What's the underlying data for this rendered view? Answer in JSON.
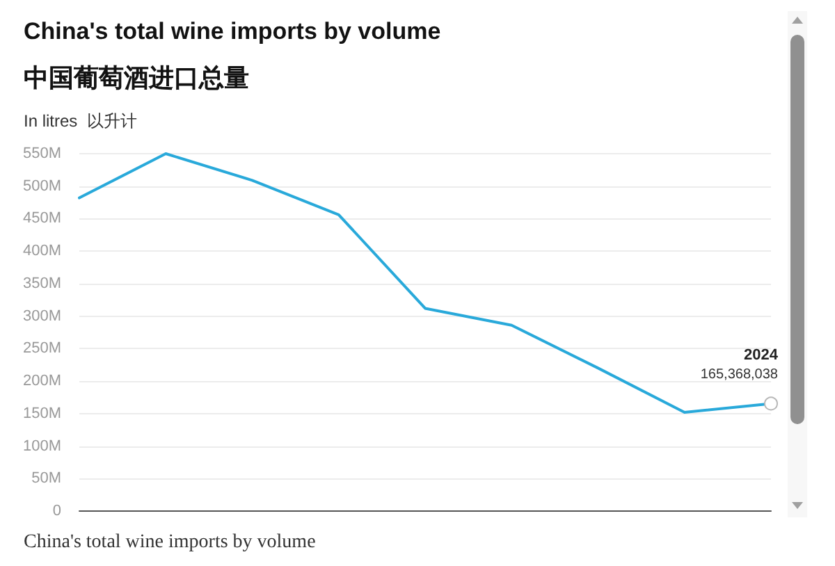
{
  "chart_data": {
    "type": "line",
    "title": "China's total wine imports by volume",
    "subtitle": "中国葡萄酒进口总量",
    "ylabel": "In litres  以升计",
    "categories": [
      null,
      null,
      null,
      null,
      null,
      null,
      null,
      null,
      null
    ],
    "series": [
      {
        "color": "#29a9da",
        "values": [
          482000000,
          550000000,
          509000000,
          456000000,
          312000000,
          286000000,
          220000000,
          152000000,
          165368038
        ],
        "value_labels": [
          null,
          null,
          null,
          null,
          null,
          null,
          null,
          null,
          "165,368,038"
        ]
      }
    ],
    "ylim": [
      0,
      550000000
    ],
    "yticks": [
      {
        "value": 0,
        "label": "0"
      },
      {
        "value": 50000000,
        "label": "50M"
      },
      {
        "value": 100000000,
        "label": "100M"
      },
      {
        "value": 150000000,
        "label": "150M"
      },
      {
        "value": 200000000,
        "label": "200M"
      },
      {
        "value": 250000000,
        "label": "250M"
      },
      {
        "value": 300000000,
        "label": "300M"
      },
      {
        "value": 350000000,
        "label": "350M"
      },
      {
        "value": 400000000,
        "label": "400M"
      },
      {
        "value": 450000000,
        "label": "450M"
      },
      {
        "value": 500000000,
        "label": "500M"
      },
      {
        "value": 550000000,
        "label": "550M"
      }
    ],
    "tick_labels": "y",
    "grid": "y",
    "annotations": [
      {
        "text": "2024",
        "y": 165368038
      },
      "China's total wine imports by volume"
    ]
  }
}
